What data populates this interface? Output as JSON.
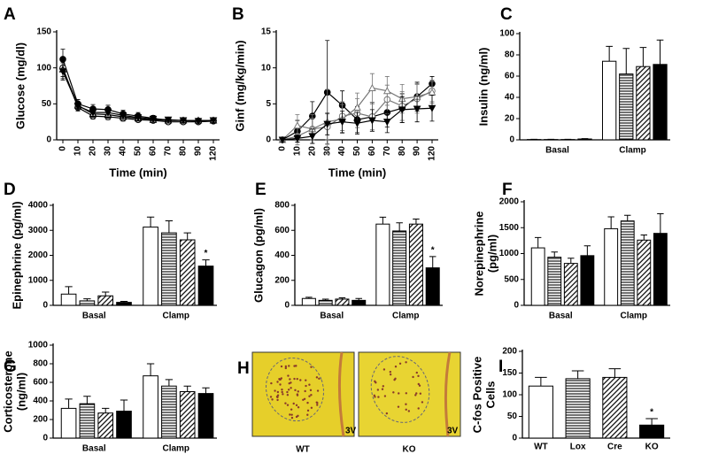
{
  "chart_data": [
    {
      "type": "line",
      "panel": "A",
      "ylabel": [
        "Glucose (mg/dl)"
      ],
      "xlabel": "Time (min)",
      "categories": [
        "0",
        "10",
        "20",
        "30",
        "40",
        "50",
        "60",
        "70",
        "80",
        "90",
        "120"
      ],
      "ylim": [
        0,
        150
      ],
      "yticks": [
        0,
        50,
        100,
        150
      ],
      "series": [
        {
          "marker": "circle-filled",
          "color": "#000",
          "values": [
            112,
            50,
            43,
            42,
            36,
            33,
            30,
            27,
            27,
            26,
            27
          ],
          "errors": [
            14,
            6,
            6,
            6,
            5,
            5,
            4,
            3,
            3,
            3,
            3
          ]
        },
        {
          "marker": "circle-open",
          "color": "#000",
          "values": [
            100,
            45,
            33,
            32,
            30,
            28,
            27,
            25,
            25,
            25,
            26
          ],
          "errors": [
            12,
            5,
            4,
            4,
            4,
            3,
            3,
            3,
            3,
            3,
            3
          ]
        },
        {
          "marker": "triangle-open",
          "color": "#000",
          "values": [
            98,
            48,
            36,
            35,
            32,
            30,
            28,
            27,
            27,
            27,
            27
          ],
          "errors": [
            13,
            5,
            5,
            5,
            4,
            4,
            3,
            3,
            3,
            3,
            3
          ]
        },
        {
          "marker": "triangle-down-filled",
          "color": "#000",
          "values": [
            95,
            47,
            38,
            38,
            34,
            31,
            29,
            28,
            27,
            26,
            27
          ],
          "errors": [
            12,
            5,
            5,
            5,
            4,
            4,
            3,
            3,
            3,
            3,
            3
          ]
        }
      ]
    },
    {
      "type": "line",
      "panel": "B",
      "ylabel": [
        "Ginf (mg/kg/min)"
      ],
      "xlabel": "Time  (min)",
      "categories": [
        "0",
        "10",
        "20",
        "30",
        "40",
        "50",
        "60",
        "70",
        "80",
        "90",
        "120"
      ],
      "ylim": [
        0,
        15
      ],
      "yticks": [
        0,
        5,
        10,
        15
      ],
      "series": [
        {
          "marker": "circle-filled",
          "color": "#000",
          "values": [
            0,
            1.2,
            3.3,
            6.6,
            4.8,
            2.8,
            3.2,
            3.8,
            4.4,
            6,
            7.8
          ],
          "errors": [
            0.3,
            1.5,
            2,
            7.2,
            2,
            1.8,
            2,
            2,
            2,
            2,
            1
          ]
        },
        {
          "marker": "circle-open",
          "color": "#777",
          "values": [
            0,
            0.5,
            1.5,
            1.8,
            3.3,
            3.7,
            3.2,
            5.6,
            4.7,
            5.7,
            6.8
          ],
          "errors": [
            0.3,
            1.2,
            1.5,
            1.8,
            2,
            2,
            1.8,
            2,
            2,
            2,
            1.5
          ]
        },
        {
          "marker": "triangle-open",
          "color": "#777",
          "values": [
            0,
            2,
            1.5,
            2.5,
            2.9,
            4.5,
            7.2,
            6.8,
            5.7,
            6,
            6.6
          ],
          "errors": [
            0.3,
            1.5,
            2,
            4.5,
            2,
            2,
            2,
            2,
            2,
            1.8,
            1.5
          ]
        },
        {
          "marker": "triangle-down-filled",
          "color": "#000",
          "values": [
            0,
            0.2,
            0.5,
            2.2,
            2.5,
            2.3,
            2.7,
            2.5,
            4.2,
            4.3,
            4.4
          ],
          "errors": [
            0.3,
            0.5,
            1,
            1.5,
            1.5,
            1.5,
            1.5,
            1.5,
            1.8,
            1.8,
            1.8
          ]
        }
      ]
    },
    {
      "type": "bar",
      "panel": "C",
      "ylabel": [
        "Insulin (ng/ml)"
      ],
      "categories": [
        "Basal",
        "Clamp"
      ],
      "ylim": [
        0,
        100
      ],
      "yticks": [
        0,
        20,
        40,
        60,
        80,
        100
      ],
      "series": [
        {
          "pattern": "none",
          "values": [
            0.3,
            74
          ],
          "errors": [
            0.2,
            14
          ],
          "annotations": [
            null,
            null
          ]
        },
        {
          "pattern": "horizontal",
          "values": [
            0.3,
            62
          ],
          "errors": [
            0.2,
            24
          ],
          "annotations": [
            null,
            null
          ]
        },
        {
          "pattern": "diagonal",
          "values": [
            0.3,
            69
          ],
          "errors": [
            0.2,
            18
          ],
          "annotations": [
            null,
            null
          ]
        },
        {
          "pattern": "solid",
          "values": [
            0.8,
            71
          ],
          "errors": [
            0.3,
            23
          ],
          "annotations": [
            null,
            null
          ]
        }
      ]
    },
    {
      "type": "bar",
      "panel": "D",
      "ylabel": [
        "Epinephrine (pg/ml)"
      ],
      "categories": [
        "Basal",
        "Clamp"
      ],
      "ylim": [
        0,
        4000
      ],
      "yticks": [
        0,
        1000,
        2000,
        3000,
        4000
      ],
      "series": [
        {
          "pattern": "none",
          "values": [
            450,
            3130
          ],
          "errors": [
            300,
            400
          ],
          "annotations": [
            null,
            null
          ]
        },
        {
          "pattern": "horizontal",
          "values": [
            180,
            2900
          ],
          "errors": [
            80,
            480
          ],
          "annotations": [
            null,
            null
          ]
        },
        {
          "pattern": "diagonal",
          "values": [
            380,
            2620
          ],
          "errors": [
            150,
            280
          ],
          "annotations": [
            null,
            null
          ]
        },
        {
          "pattern": "solid",
          "values": [
            120,
            1570
          ],
          "errors": [
            40,
            250
          ],
          "annotations": [
            null,
            "*"
          ]
        }
      ]
    },
    {
      "type": "bar",
      "panel": "E",
      "ylabel": [
        "Glucagon (pg/ml)"
      ],
      "categories": [
        "Basal",
        "Clamp"
      ],
      "ylim": [
        0,
        800
      ],
      "yticks": [
        0,
        200,
        400,
        600,
        800
      ],
      "series": [
        {
          "pattern": "none",
          "values": [
            55,
            650
          ],
          "errors": [
            10,
            55
          ],
          "annotations": [
            null,
            null
          ]
        },
        {
          "pattern": "horizontal",
          "values": [
            40,
            595
          ],
          "errors": [
            10,
            65
          ],
          "annotations": [
            null,
            null
          ]
        },
        {
          "pattern": "diagonal",
          "values": [
            50,
            650
          ],
          "errors": [
            10,
            40
          ],
          "annotations": [
            null,
            null
          ]
        },
        {
          "pattern": "solid",
          "values": [
            40,
            300
          ],
          "errors": [
            15,
            90
          ],
          "annotations": [
            null,
            "*"
          ]
        }
      ]
    },
    {
      "type": "bar",
      "panel": "F",
      "ylabel": [
        "Norepinephrine",
        "(pg/ml)"
      ],
      "categories": [
        "Basal",
        "Clamp"
      ],
      "ylim": [
        0,
        2000
      ],
      "yticks": [
        0,
        500,
        1000,
        1500,
        2000
      ],
      "series": [
        {
          "pattern": "none",
          "values": [
            1110,
            1480
          ],
          "errors": [
            200,
            230
          ],
          "annotations": [
            null,
            null
          ]
        },
        {
          "pattern": "horizontal",
          "values": [
            930,
            1630
          ],
          "errors": [
            100,
            110
          ],
          "annotations": [
            null,
            null
          ]
        },
        {
          "pattern": "diagonal",
          "values": [
            810,
            1260
          ],
          "errors": [
            100,
            100
          ],
          "annotations": [
            null,
            null
          ]
        },
        {
          "pattern": "solid",
          "values": [
            960,
            1390
          ],
          "errors": [
            190,
            380
          ],
          "annotations": [
            null,
            null
          ]
        }
      ]
    },
    {
      "type": "bar",
      "panel": "G",
      "ylabel": [
        "Corticosterone",
        "(ng/ml)"
      ],
      "categories": [
        "Basal",
        "Clamp"
      ],
      "ylim": [
        0,
        1000
      ],
      "yticks": [
        0,
        200,
        400,
        600,
        800,
        1000
      ],
      "series": [
        {
          "pattern": "none",
          "values": [
            320,
            670
          ],
          "errors": [
            100,
            130
          ],
          "annotations": [
            null,
            null
          ]
        },
        {
          "pattern": "horizontal",
          "values": [
            370,
            560
          ],
          "errors": [
            80,
            70
          ],
          "annotations": [
            null,
            null
          ]
        },
        {
          "pattern": "diagonal",
          "values": [
            270,
            500
          ],
          "errors": [
            50,
            60
          ],
          "annotations": [
            null,
            null
          ]
        },
        {
          "pattern": "solid",
          "values": [
            290,
            480
          ],
          "errors": [
            120,
            60
          ],
          "annotations": [
            null,
            null
          ]
        }
      ]
    },
    {
      "type": "bar",
      "panel": "I",
      "ylabel": [
        "C-fos Positive",
        "Cells"
      ],
      "categories": [
        "WT",
        "Lox",
        "Cre",
        "KO"
      ],
      "ylim": [
        0,
        200
      ],
      "yticks": [
        0,
        50,
        100,
        150,
        200
      ],
      "values": [
        120,
        137,
        140,
        30
      ],
      "errors": [
        20,
        18,
        20,
        15
      ],
      "patterns": [
        "none",
        "horizontal",
        "diagonal",
        "solid"
      ],
      "annotations": [
        null,
        null,
        null,
        "*"
      ]
    }
  ],
  "panel_h": {
    "panel": "H",
    "images": [
      {
        "caption": "WT",
        "marker": "3V"
      },
      {
        "caption": "KO",
        "marker": "3V"
      }
    ]
  }
}
